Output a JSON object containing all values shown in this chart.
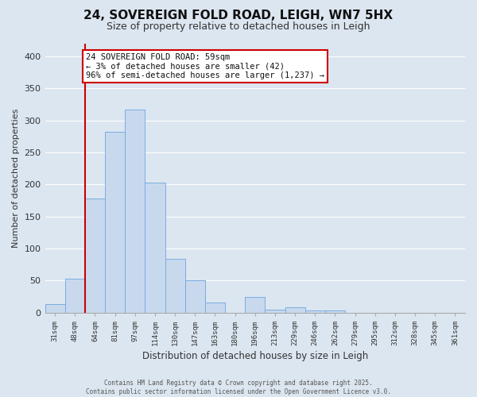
{
  "title": "24, SOVEREIGN FOLD ROAD, LEIGH, WN7 5HX",
  "subtitle": "Size of property relative to detached houses in Leigh",
  "xlabel": "Distribution of detached houses by size in Leigh",
  "ylabel": "Number of detached properties",
  "bar_labels": [
    "31sqm",
    "48sqm",
    "64sqm",
    "81sqm",
    "97sqm",
    "114sqm",
    "130sqm",
    "147sqm",
    "163sqm",
    "180sqm",
    "196sqm",
    "213sqm",
    "229sqm",
    "246sqm",
    "262sqm",
    "279sqm",
    "295sqm",
    "312sqm",
    "328sqm",
    "345sqm",
    "361sqm"
  ],
  "bar_values": [
    13,
    53,
    178,
    283,
    317,
    203,
    84,
    51,
    16,
    0,
    24,
    5,
    9,
    3,
    4,
    0,
    0,
    0,
    0,
    0,
    0
  ],
  "bar_color": "#c8d9ee",
  "bar_edge_color": "#7aace0",
  "vline_color": "#cc0000",
  "vline_x": 1.5,
  "annotation_title": "24 SOVEREIGN FOLD ROAD: 59sqm",
  "annotation_line1": "← 3% of detached houses are smaller (42)",
  "annotation_line2": "96% of semi-detached houses are larger (1,237) →",
  "annotation_box_color": "#ffffff",
  "annotation_box_edge": "#cc0000",
  "ylim": [
    0,
    420
  ],
  "yticks": [
    0,
    50,
    100,
    150,
    200,
    250,
    300,
    350,
    400
  ],
  "bg_color": "#dce6f0",
  "grid_color": "#ffffff",
  "footer_line1": "Contains HM Land Registry data © Crown copyright and database right 2025.",
  "footer_line2": "Contains public sector information licensed under the Open Government Licence v3.0."
}
